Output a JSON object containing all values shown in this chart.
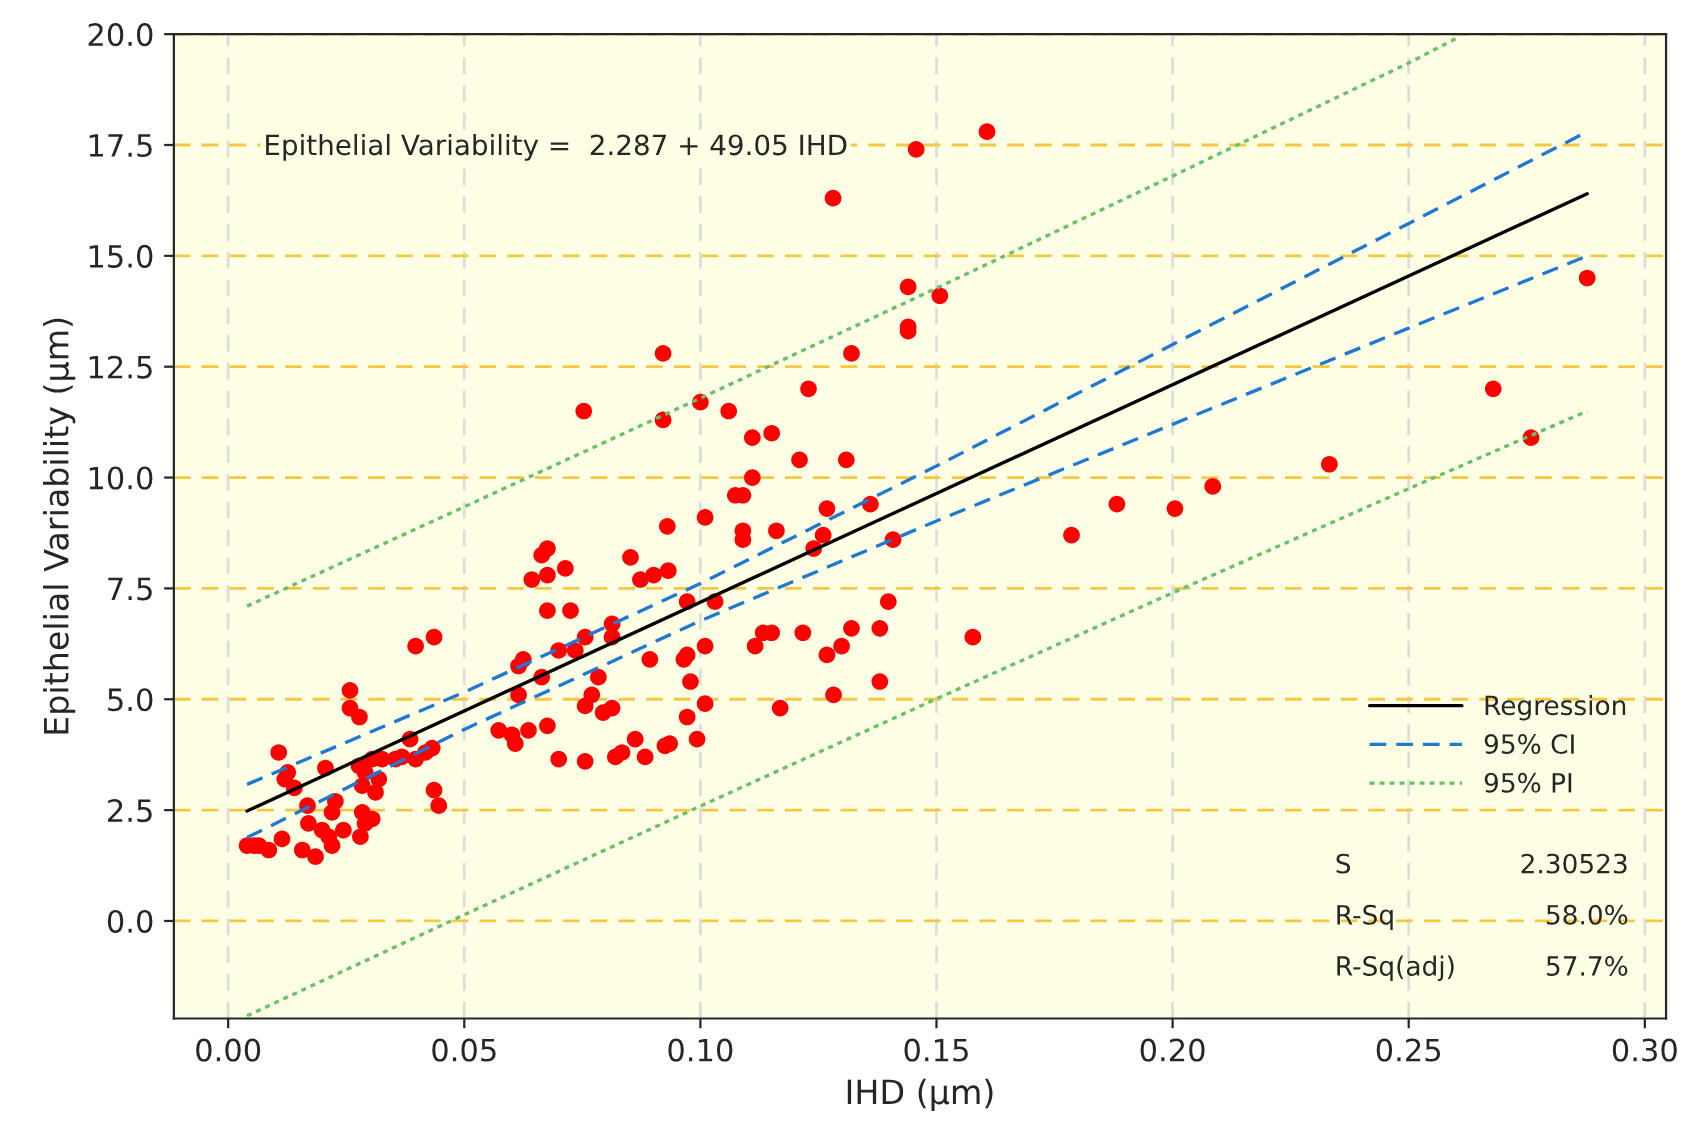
{
  "chart_data": {
    "type": "scatter",
    "xlabel": "IHD (µm)",
    "ylabel": "Epithelial Variability (µm)",
    "xlim": [
      -0.0115,
      0.3045
    ],
    "ylim": [
      -2.2,
      20.0
    ],
    "xticks": [
      {
        "value": 0,
        "label": "0.00"
      },
      {
        "value": 0.05,
        "label": "0.05"
      },
      {
        "value": 0.1,
        "label": "0.10"
      },
      {
        "value": 0.15,
        "label": "0.15"
      },
      {
        "value": 0.2,
        "label": "0.20"
      },
      {
        "value": 0.25,
        "label": "0.25"
      },
      {
        "value": 0.3,
        "label": "0.30"
      }
    ],
    "yticks": [
      {
        "value": 0,
        "label": "0.0"
      },
      {
        "value": 2.5,
        "label": "2.5"
      },
      {
        "value": 5,
        "label": "5.0"
      },
      {
        "value": 7.5,
        "label": "7.5"
      },
      {
        "value": 10,
        "label": "10.0"
      },
      {
        "value": 12.5,
        "label": "12.5"
      },
      {
        "value": 15,
        "label": "15.0"
      },
      {
        "value": 17.5,
        "label": "17.5"
      },
      {
        "value": 20,
        "label": "20.0"
      }
    ],
    "grid": true,
    "legend": "bottom right",
    "annotations": [
      "Epithelial Variability =  2.287 + 49.05 IHD",
      "S",
      "2.30523",
      "R-Sq",
      "58.0%",
      "R-Sq(adj)",
      "57.7%"
    ],
    "series": [
      {
        "color": "#ff0000",
        "marker": "circle",
        "x": [
          0.0397,
          0.0436,
          0.0258,
          0.0258,
          0.0278,
          0.0107,
          0.0126,
          0.012,
          0.014,
          0.0206,
          0.0168,
          0.022,
          0.0227,
          0.017,
          0.0199,
          0.0244,
          0.0213,
          0.0157,
          0.0185,
          0.022,
          0.0065,
          0.0086,
          0.0114,
          0.0055,
          0.004,
          0.0284,
          0.029,
          0.028,
          0.0305,
          0.0277,
          0.029,
          0.0284,
          0.0305,
          0.0319,
          0.0312,
          0.0326,
          0.0354,
          0.0368,
          0.0385,
          0.0397,
          0.0418,
          0.0432,
          0.0436,
          0.0446,
          0.0573,
          0.0601,
          0.0608,
          0.0636,
          0.0676,
          0.0615,
          0.0625,
          0.0615,
          0.0664,
          0.0676,
          0.0643,
          0.0676,
          0.07,
          0.07,
          0.0921,
          0.0753,
          0.0921,
          0.1,
          0.106,
          0.111,
          0.111,
          0.1074,
          0.109,
          0.109,
          0.109,
          0.101,
          0.093,
          0.0664,
          0.0676,
          0.0714,
          0.0852,
          0.0873,
          0.0901,
          0.0932,
          0.0725,
          0.0735,
          0.0756,
          0.0813,
          0.0813,
          0.0784,
          0.077,
          0.0756,
          0.0794,
          0.0813,
          0.0756,
          0.082,
          0.0834,
          0.0862,
          0.0883,
          0.0925,
          0.0935,
          0.0993,
          0.0972,
          0.101,
          0.0979,
          0.0972,
          0.0965,
          0.101,
          0.0893,
          0.0972,
          0.1031,
          0.1116,
          0.1607,
          0.1457,
          0.1281,
          0.144,
          0.144,
          0.144,
          0.1507,
          0.132,
          0.1229,
          0.1151,
          0.121,
          0.1309,
          0.1268,
          0.136,
          0.1161,
          0.126,
          0.124,
          0.1408,
          0.1882,
          0.1786,
          0.1398,
          0.138,
          0.132,
          0.1299,
          0.1268,
          0.1217,
          0.1151,
          0.1133,
          0.1577,
          0.138,
          0.1282,
          0.1169,
          0.2005,
          0.2085,
          0.2332,
          0.2679,
          0.2759,
          0.2878
        ],
        "values": [
          6.2,
          6.4,
          5.2,
          4.8,
          4.6,
          3.8,
          3.35,
          3.2,
          3.0,
          3.45,
          2.6,
          2.45,
          2.7,
          2.2,
          2.05,
          2.05,
          1.9,
          1.6,
          1.45,
          1.7,
          1.7,
          1.6,
          1.85,
          1.7,
          1.7,
          2.45,
          2.2,
          1.9,
          2.3,
          3.5,
          3.35,
          3.05,
          3.65,
          3.2,
          2.9,
          3.65,
          3.65,
          3.7,
          4.1,
          3.65,
          3.8,
          3.9,
          2.95,
          2.6,
          4.3,
          4.2,
          4.0,
          4.3,
          4.4,
          5.75,
          5.9,
          5.1,
          5.5,
          7.0,
          7.7,
          7.8,
          6.1,
          3.65,
          12.8,
          11.5,
          11.3,
          11.7,
          11.5,
          10.9,
          10.0,
          9.6,
          9.6,
          8.8,
          8.6,
          9.1,
          8.9,
          8.25,
          8.4,
          7.95,
          8.2,
          7.7,
          7.8,
          7.9,
          7.0,
          6.1,
          6.4,
          6.7,
          6.4,
          5.5,
          5.1,
          4.85,
          4.7,
          4.8,
          3.6,
          3.7,
          3.8,
          4.1,
          3.7,
          3.95,
          4.0,
          4.1,
          4.6,
          4.9,
          5.4,
          6.0,
          5.9,
          6.2,
          5.9,
          7.2,
          7.2,
          6.2,
          17.8,
          17.4,
          16.3,
          14.3,
          13.4,
          13.3,
          14.1,
          12.8,
          12.0,
          11.0,
          10.4,
          10.4,
          9.3,
          9.4,
          8.8,
          8.7,
          8.4,
          8.6,
          9.4,
          8.7,
          7.2,
          6.6,
          6.6,
          6.2,
          6.0,
          6.5,
          6.5,
          6.5,
          6.4,
          5.4,
          5.1,
          4.8,
          9.3,
          9.8,
          10.3,
          12.0,
          10.9,
          14.5
        ]
      },
      {
        "type": "line",
        "name": "Regression",
        "color": "#000000",
        "line_style": "solid",
        "marker": "none",
        "x": [
          0.004,
          0.2878
        ],
        "values": [
          2.48,
          16.4
        ]
      },
      {
        "type": "line",
        "name": "95% CI",
        "color": "#1f78d1",
        "line_style": "dashed",
        "marker": "none",
        "x": [
          0.004,
          0.05,
          0.1,
          0.15,
          0.2,
          0.25,
          0.2878
        ],
        "values": [
          3.08,
          5.16,
          7.61,
          10.26,
          13.0,
          15.73,
          17.8
        ]
      },
      {
        "type": "line",
        "color": "#1f78d1",
        "line_style": "dashed",
        "marker": "none",
        "x": [
          0.004,
          0.05,
          0.1,
          0.15,
          0.2,
          0.25,
          0.2878
        ],
        "values": [
          1.88,
          4.32,
          6.77,
          9.02,
          11.2,
          13.37,
          15.0
        ]
      },
      {
        "type": "line",
        "name": "95% PI",
        "color": "#66c266",
        "line_style": "dotted",
        "marker": "none",
        "x": [
          0.004,
          0.05,
          0.1,
          0.15,
          0.2,
          0.25,
          0.26
        ],
        "values": [
          7.1,
          9.34,
          11.79,
          14.27,
          16.8,
          19.35,
          19.9
        ]
      },
      {
        "type": "line",
        "color": "#66c266",
        "line_style": "dotted",
        "marker": "none",
        "x": [
          0.004,
          0.05,
          0.1,
          0.15,
          0.2,
          0.25,
          0.2878
        ],
        "values": [
          -2.14,
          0.14,
          2.59,
          5.01,
          7.4,
          9.75,
          11.5
        ]
      }
    ]
  }
}
